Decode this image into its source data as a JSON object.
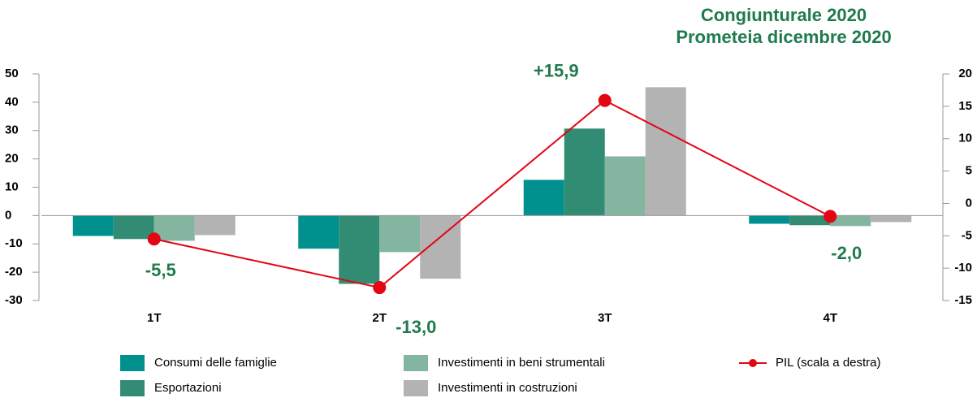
{
  "chart_data": {
    "type": "bar",
    "title": "Congiunturale 2020",
    "subtitle": "Prometeia dicembre 2020",
    "categories": [
      "1T",
      "2T",
      "3T",
      "4T"
    ],
    "series": [
      {
        "name": "Consumi delle famiglie",
        "color": "#00918f",
        "values": [
          -7.2,
          -11.7,
          12.6,
          -2.9
        ]
      },
      {
        "name": "Esportazioni",
        "color": "#318c73",
        "values": [
          -8.3,
          -24.1,
          30.7,
          -3.4
        ]
      },
      {
        "name": "Investimenti in beni strumentali",
        "color": "#84b5a0",
        "values": [
          -8.9,
          -12.9,
          20.9,
          -3.7
        ]
      },
      {
        "name": "Investimenti in costruzioni",
        "color": "#b3b3b3",
        "values": [
          -6.9,
          -22.3,
          45.3,
          -2.3
        ]
      },
      {
        "name": "PIL (scala a destra)",
        "type": "line",
        "axis": "y2",
        "color": "#e30613",
        "values": [
          -5.5,
          -13.0,
          15.9,
          -2.0
        ],
        "value_labels": [
          "-5,5",
          "-13,0",
          "+15,9",
          "-2,0"
        ]
      }
    ],
    "ylim": [
      -30,
      50
    ],
    "yticks": [
      -30,
      -20,
      -10,
      0,
      10,
      20,
      30,
      40,
      50
    ],
    "y2lim": [
      -15,
      20
    ],
    "y2ticks": [
      -15,
      -10,
      -5,
      0,
      5,
      10,
      15,
      20
    ],
    "grid": false
  }
}
